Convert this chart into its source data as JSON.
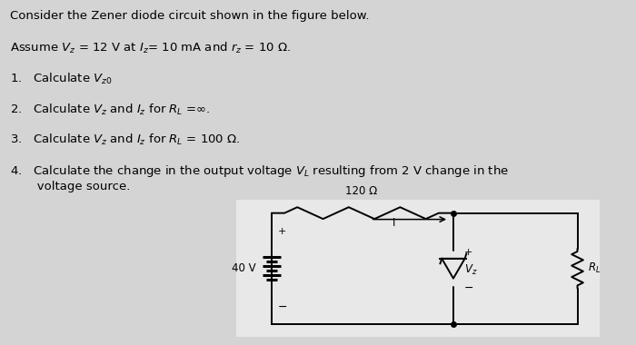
{
  "bg_color": "#d4d4d4",
  "text_color": "#000000",
  "title_line1": "Consider the Zener diode circuit shown in the figure below.",
  "title_line2": "Assume $V_z$ = 12 V at $I_z$= 10 mA and $r_z$ = 10 Ω.",
  "items": [
    "1.   Calculate $V_{z0}$",
    "2.   Calculate $V_z$ and $I_z$ for $R_L$ =∞.",
    "3.   Calculate $V_z$ and $I_z$ for $R_L$ = 100 Ω.",
    "4.   Calculate the change in the output voltage $V_L$ resulting from 2 V change in the\n       voltage source."
  ],
  "circuit_bg": "#e8e8e8",
  "resistor_label": "120 Ω",
  "source_label": "40 V",
  "vz_label": "$V_z$",
  "rl_label": "$R_L$",
  "current_label": "I"
}
